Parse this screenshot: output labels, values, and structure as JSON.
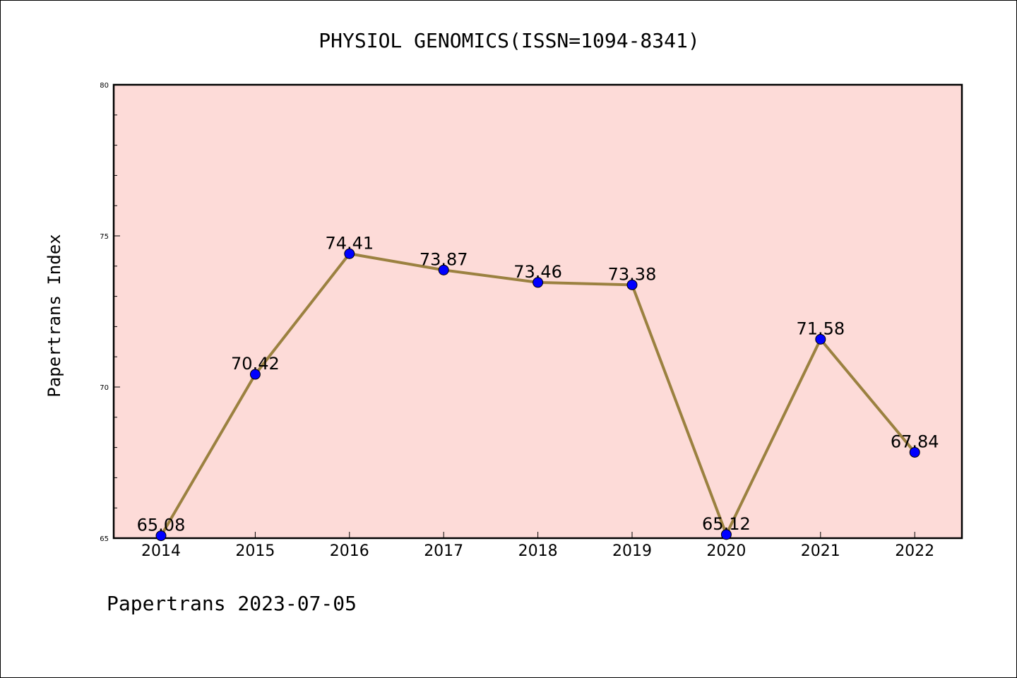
{
  "chart_data": {
    "type": "line",
    "title": "PHYSIOL GENOMICS(ISSN=1094-8341)",
    "ylabel": "Papertrans Index",
    "xlabel": "",
    "categories": [
      "2014",
      "2015",
      "2016",
      "2017",
      "2018",
      "2019",
      "2020",
      "2021",
      "2022"
    ],
    "series": [
      {
        "values": [
          65.08,
          70.42,
          74.41,
          73.87,
          73.46,
          73.38,
          65.12,
          71.58,
          67.84
        ],
        "labels": [
          "65.08",
          "70.42",
          "74.41",
          "73.87",
          "73.46",
          "73.38",
          "65.12",
          "71.58",
          "67.84"
        ],
        "line_color": "#9b8140",
        "marker_color": "#0000ff"
      }
    ],
    "ylim": [
      65,
      80
    ],
    "yticks": [
      "65",
      "70",
      "75",
      "80"
    ],
    "plot_background": "#fddbd8",
    "grid": false,
    "legend": "none"
  },
  "footer": "Papertrans 2023-07-05"
}
